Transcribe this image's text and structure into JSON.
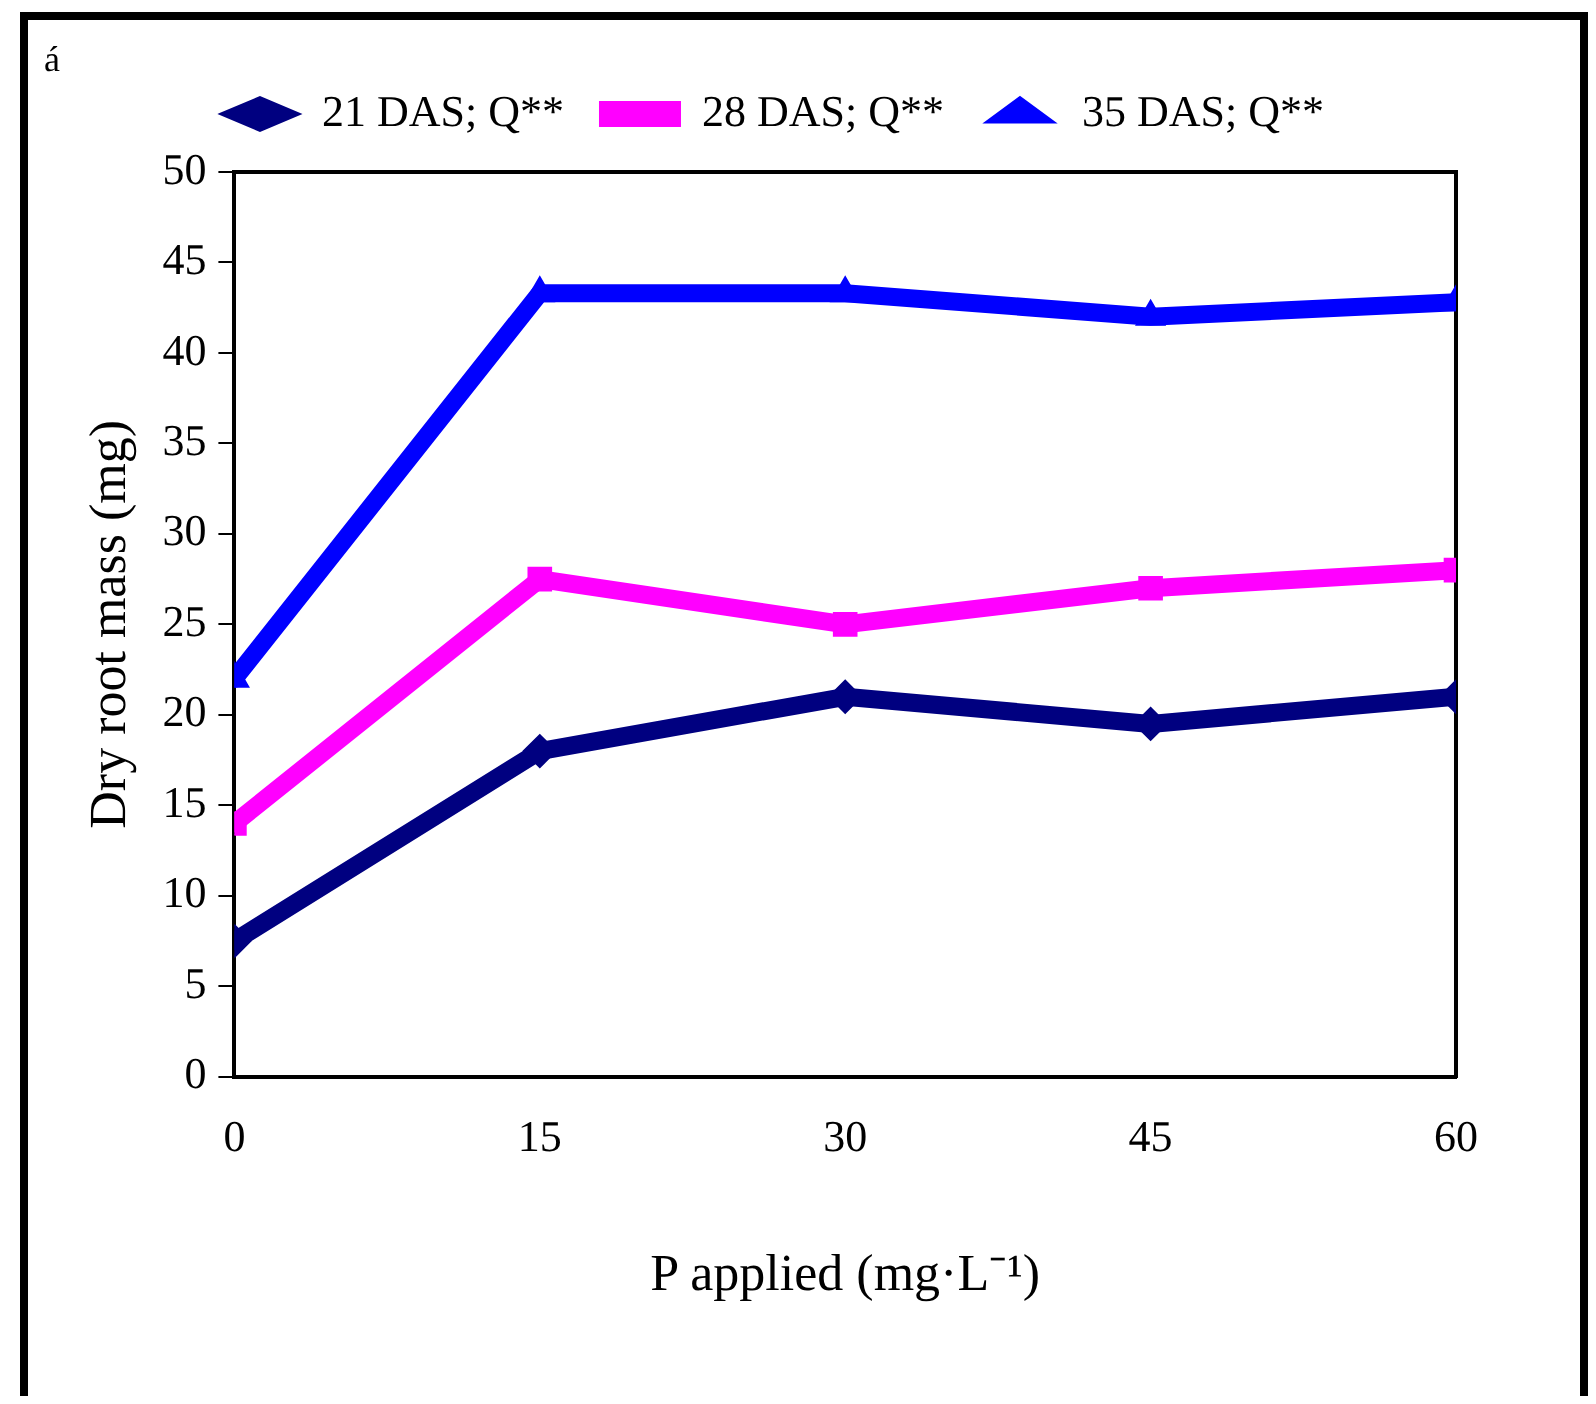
{
  "chart_data": {
    "type": "line",
    "xlabel": "P applied (mg·L⁻¹)",
    "ylabel": "Dry root mass (mg)",
    "annotations": [
      "á"
    ],
    "x": [
      0,
      15,
      30,
      45,
      60
    ],
    "xlim": [
      0,
      60
    ],
    "xticks": [
      0,
      15,
      30,
      45,
      60
    ],
    "ylim": [
      0,
      50
    ],
    "yticks": [
      0,
      5,
      10,
      15,
      20,
      25,
      30,
      35,
      40,
      45,
      50
    ],
    "grid": false,
    "legend": "top",
    "line_style": "solid",
    "series": [
      {
        "name": "21 DAS; Q**",
        "color": "#000080",
        "marker": "diamond",
        "values": [
          7.5,
          18,
          21,
          19.5,
          21
        ]
      },
      {
        "name": "28 DAS; Q**",
        "color": "#ff00ff",
        "marker": "square",
        "values": [
          14,
          27.5,
          25,
          27,
          28
        ]
      },
      {
        "name": "35 DAS; Q**",
        "color": "#0000ff",
        "marker": "triangle",
        "values": [
          22,
          43.3,
          43.3,
          42,
          42.8
        ]
      }
    ]
  }
}
